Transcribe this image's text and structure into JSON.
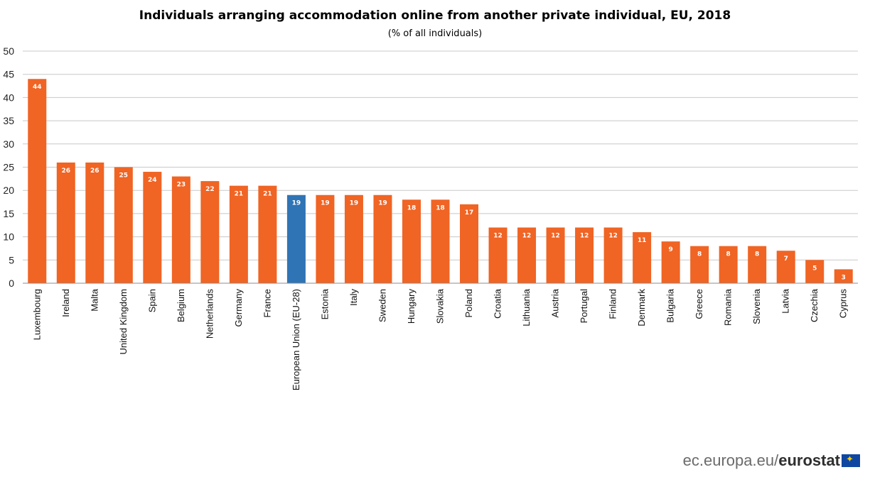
{
  "chart_data": {
    "type": "bar",
    "title": "Individuals arranging accommodation online from another private individual, EU, 2018",
    "subtitle": "(% of all individuals)",
    "categories": [
      "Luxembourg",
      "Ireland",
      "Malta",
      "United Kingdom",
      "Spain",
      "Belgium",
      "Netherlands",
      "Germany",
      "France",
      "European Union (EU-28)",
      "Estonia",
      "Italy",
      "Sweden",
      "Hungary",
      "Slovakia",
      "Poland",
      "Croatia",
      "Lithuania",
      "Austria",
      "Portugal",
      "Finland",
      "Denmark",
      "Bulgaria",
      "Greece",
      "Romania",
      "Slovenia",
      "Latvia",
      "Czechia",
      "Cyprus"
    ],
    "values": [
      44,
      26,
      26,
      25,
      24,
      23,
      22,
      21,
      21,
      19,
      19,
      19,
      19,
      18,
      18,
      17,
      12,
      12,
      12,
      12,
      12,
      11,
      9,
      8,
      8,
      8,
      7,
      5,
      3
    ],
    "highlight_category": "European Union (EU-28)",
    "colors": {
      "bar": "#F06424",
      "highlight": "#2F74B5"
    },
    "ylim": [
      0,
      50
    ],
    "yticks": [
      0,
      5,
      10,
      15,
      20,
      25,
      30,
      35,
      40,
      45,
      50
    ],
    "xlabel": "",
    "ylabel": "",
    "grid": true,
    "legend": "none"
  },
  "footer": {
    "site": "ec.europa.eu/",
    "brand": "eurostat",
    "flag_icon": "eu-flag-icon"
  }
}
